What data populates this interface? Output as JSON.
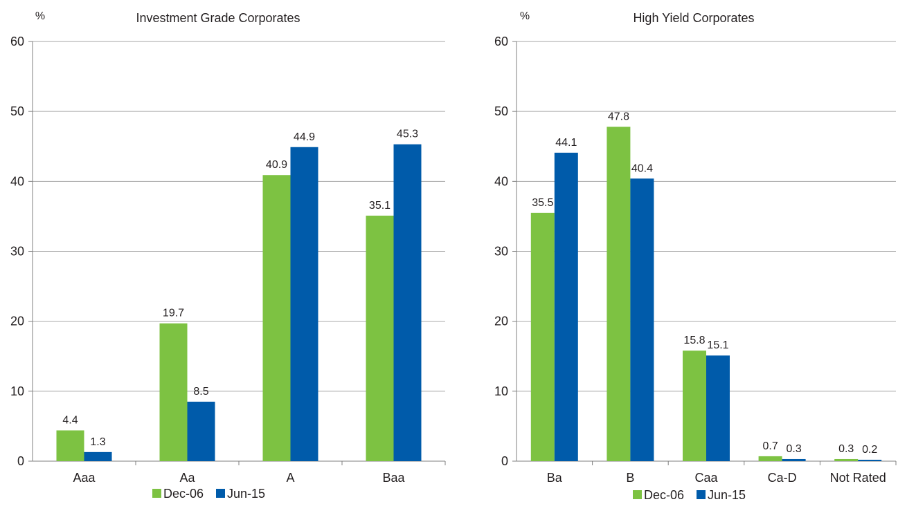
{
  "chart_data": [
    {
      "type": "bar",
      "title": "Investment Grade Corporates",
      "ylabel": "%",
      "ylim": [
        0,
        60
      ],
      "yticks": [
        0,
        10,
        20,
        30,
        40,
        50,
        60
      ],
      "grid": true,
      "legend_position": "bottom",
      "categories": [
        "Aaa",
        "Aa",
        "A",
        "Baa"
      ],
      "series": [
        {
          "name": "Dec-06",
          "color": "#7dc242",
          "values": [
            4.4,
            19.7,
            40.9,
            35.1
          ]
        },
        {
          "name": "Jun-15",
          "color": "#005baa",
          "values": [
            1.3,
            8.5,
            44.9,
            45.3
          ]
        }
      ]
    },
    {
      "type": "bar",
      "title": "High Yield Corporates",
      "ylabel": "%",
      "ylim": [
        0,
        60
      ],
      "yticks": [
        0,
        10,
        20,
        30,
        40,
        50,
        60
      ],
      "grid": true,
      "legend_position": "bottom",
      "categories": [
        "Ba",
        "B",
        "Caa",
        "Ca-D",
        "Not Rated"
      ],
      "series": [
        {
          "name": "Dec-06",
          "color": "#7dc242",
          "values": [
            35.5,
            47.8,
            15.8,
            0.7,
            0.3
          ]
        },
        {
          "name": "Jun-15",
          "color": "#005baa",
          "values": [
            44.1,
            40.4,
            15.1,
            0.3,
            0.2
          ]
        }
      ]
    }
  ]
}
